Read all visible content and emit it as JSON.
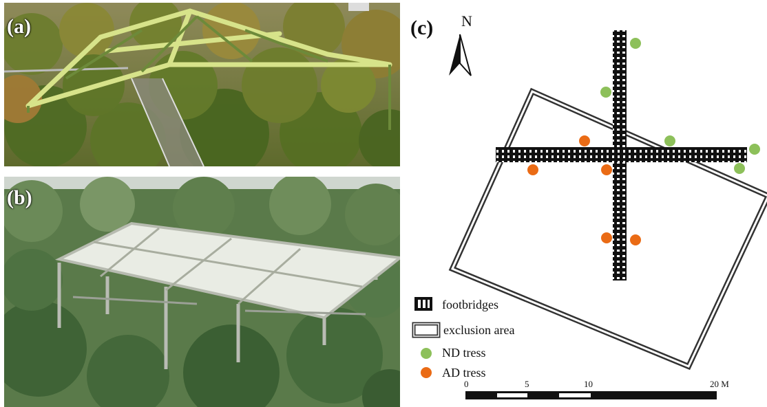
{
  "panels": {
    "a": {
      "label": "(a)",
      "description_icon": "canopy-walkway-photo"
    },
    "b": {
      "label": "(b)",
      "description_icon": "rain-exclusion-roof-photo"
    },
    "c": {
      "label": "(c)"
    }
  },
  "map": {
    "north_label": "N",
    "legend": [
      {
        "label": "footbridges",
        "icon": "footbridge-symbol"
      },
      {
        "label": "exclusion area",
        "icon": "exclusion-area-symbol"
      },
      {
        "label": "ND tress",
        "icon": "green-dot",
        "color": "#8dc05a"
      },
      {
        "label": "AD tress",
        "icon": "orange-dot",
        "color": "#ea6b15"
      }
    ],
    "scale": {
      "ticks": [
        "0",
        "5",
        "10",
        "20 M"
      ]
    },
    "colors": {
      "nd": "#8dc05a",
      "ad": "#ea6b15",
      "line": "#333333"
    }
  }
}
